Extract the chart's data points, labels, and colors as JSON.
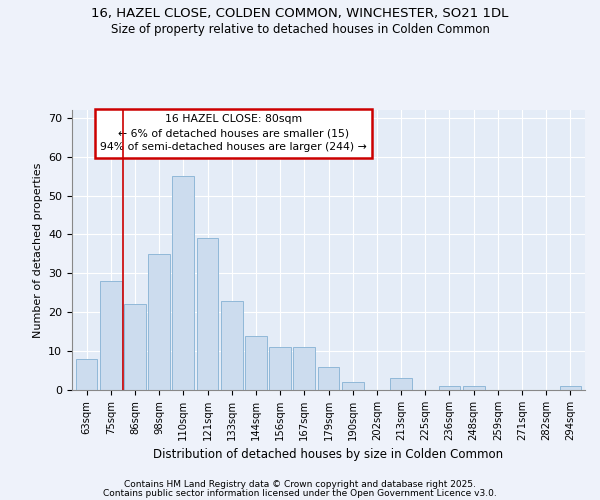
{
  "title1": "16, HAZEL CLOSE, COLDEN COMMON, WINCHESTER, SO21 1DL",
  "title2": "Size of property relative to detached houses in Colden Common",
  "xlabel": "Distribution of detached houses by size in Colden Common",
  "ylabel": "Number of detached properties",
  "categories": [
    "63sqm",
    "75sqm",
    "86sqm",
    "98sqm",
    "110sqm",
    "121sqm",
    "133sqm",
    "144sqm",
    "156sqm",
    "167sqm",
    "179sqm",
    "190sqm",
    "202sqm",
    "213sqm",
    "225sqm",
    "236sqm",
    "248sqm",
    "259sqm",
    "271sqm",
    "282sqm",
    "294sqm"
  ],
  "values": [
    8,
    28,
    22,
    35,
    55,
    39,
    23,
    14,
    11,
    11,
    6,
    2,
    0,
    3,
    0,
    1,
    1,
    0,
    0,
    0,
    1
  ],
  "bar_color": "#ccdcee",
  "bar_edge_color": "#90b8d8",
  "annotation_box_edge": "#cc0000",
  "annotation_text": "16 HAZEL CLOSE: 80sqm\n← 6% of detached houses are smaller (15)\n94% of semi-detached houses are larger (244) →",
  "ylim": [
    0,
    72
  ],
  "yticks": [
    0,
    10,
    20,
    30,
    40,
    50,
    60,
    70
  ],
  "footer1": "Contains HM Land Registry data © Crown copyright and database right 2025.",
  "footer2": "Contains public sector information licensed under the Open Government Licence v3.0.",
  "bg_color": "#eef2fa",
  "plot_bg_color": "#e4ecf7",
  "grid_color": "#ffffff",
  "vline_color": "#cc0000",
  "vline_x": 1.5
}
